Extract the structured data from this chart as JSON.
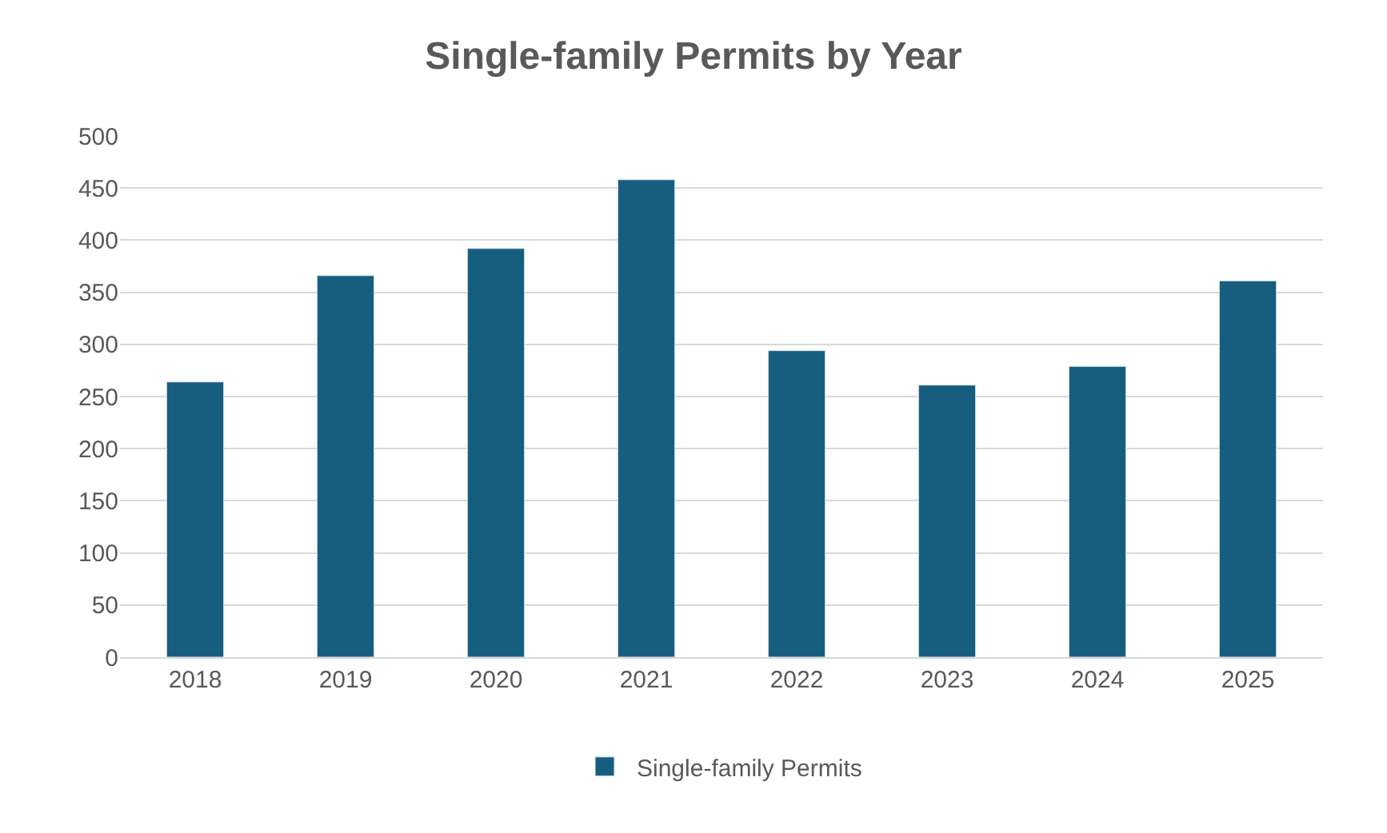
{
  "chart_data": {
    "type": "bar",
    "title": "Single-family Permits by Year",
    "categories": [
      "2018",
      "2019",
      "2020",
      "2021",
      "2022",
      "2023",
      "2024",
      "2025"
    ],
    "series": [
      {
        "name": "Single-family Permits",
        "color": "#175e7e",
        "values": [
          264,
          366,
          392,
          458,
          294,
          261,
          279,
          361
        ]
      }
    ],
    "ylim": [
      0,
      500
    ],
    "yticks": [
      0,
      50,
      100,
      150,
      200,
      250,
      300,
      350,
      400,
      450,
      500
    ],
    "grid": "y",
    "legend": "bottom"
  }
}
